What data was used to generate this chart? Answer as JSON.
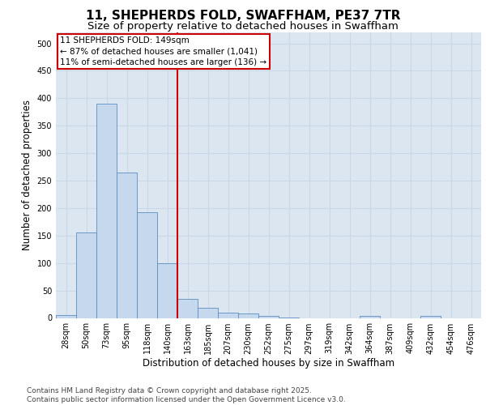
{
  "title": "11, SHEPHERDS FOLD, SWAFFHAM, PE37 7TR",
  "subtitle": "Size of property relative to detached houses in Swaffham",
  "xlabel": "Distribution of detached houses by size in Swaffham",
  "ylabel": "Number of detached properties",
  "categories": [
    "28sqm",
    "50sqm",
    "73sqm",
    "95sqm",
    "118sqm",
    "140sqm",
    "163sqm",
    "185sqm",
    "207sqm",
    "230sqm",
    "252sqm",
    "275sqm",
    "297sqm",
    "319sqm",
    "342sqm",
    "364sqm",
    "387sqm",
    "409sqm",
    "432sqm",
    "454sqm",
    "476sqm"
  ],
  "values": [
    5,
    155,
    390,
    265,
    193,
    100,
    35,
    18,
    9,
    8,
    4,
    1,
    0,
    0,
    0,
    3,
    0,
    0,
    3,
    0,
    0
  ],
  "bar_color": "#c5d8ee",
  "bar_edge_color": "#5b8dc0",
  "grid_color": "#c8d8e8",
  "background_color": "#dce6f1",
  "ref_line_x": 5.5,
  "ref_line_color": "#cc0000",
  "ylim": [
    0,
    520
  ],
  "yticks": [
    0,
    50,
    100,
    150,
    200,
    250,
    300,
    350,
    400,
    450,
    500
  ],
  "annotation_title": "11 SHEPHERDS FOLD: 149sqm",
  "annotation_line1": "← 87% of detached houses are smaller (1,041)",
  "annotation_line2": "11% of semi-detached houses are larger (136) →",
  "footer_line1": "Contains HM Land Registry data © Crown copyright and database right 2025.",
  "footer_line2": "Contains public sector information licensed under the Open Government Licence v3.0.",
  "title_fontsize": 11,
  "subtitle_fontsize": 9.5,
  "axis_label_fontsize": 8.5,
  "tick_fontsize": 7,
  "annotation_fontsize": 7.5,
  "footer_fontsize": 6.5
}
